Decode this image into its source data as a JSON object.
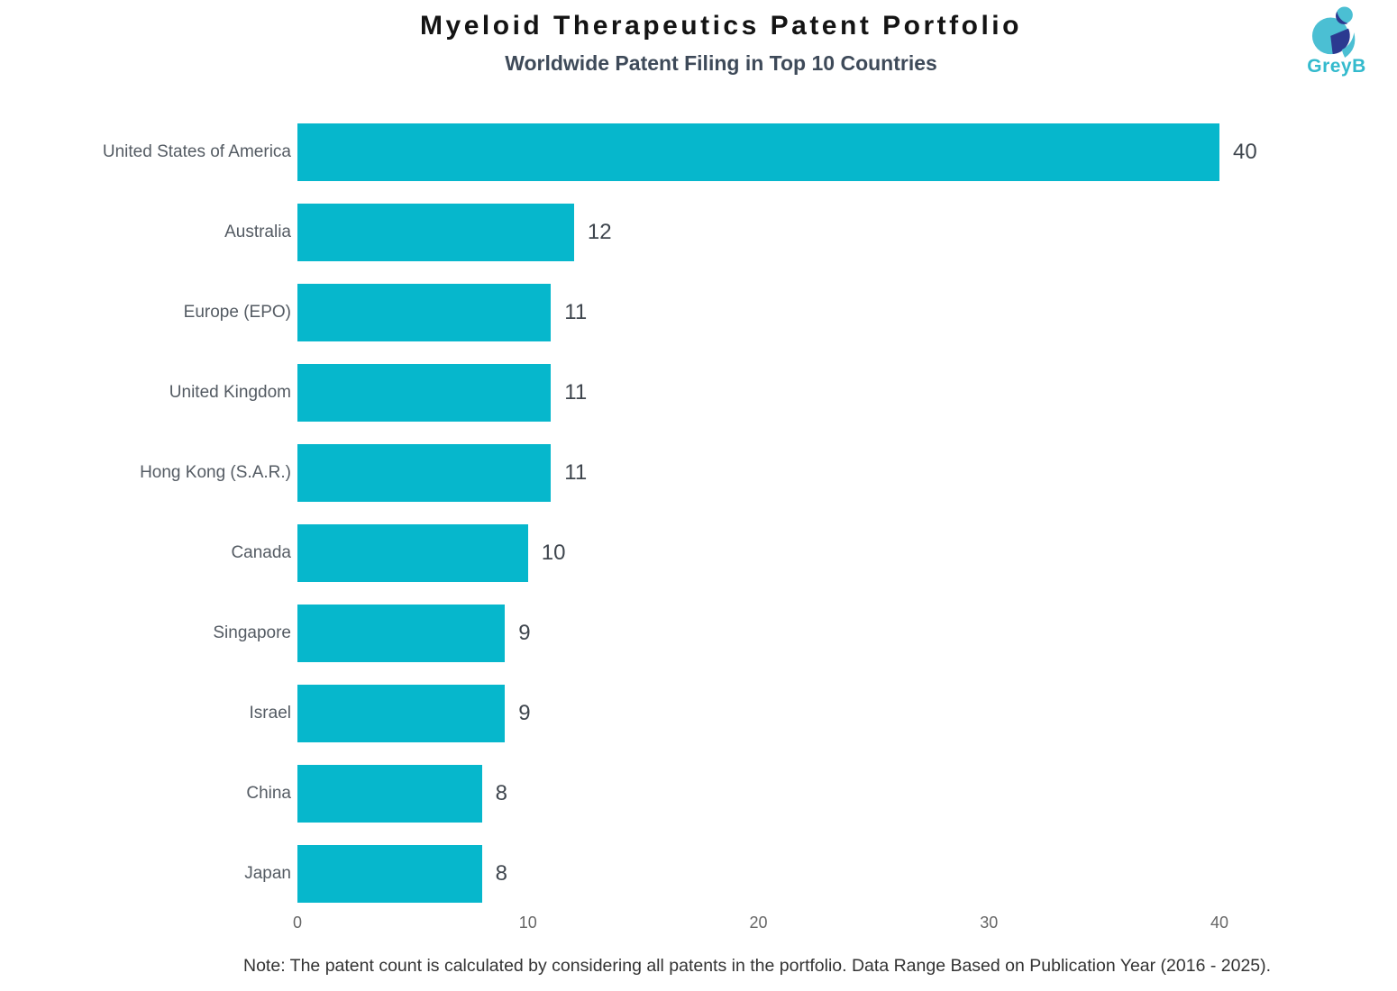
{
  "header": {
    "title": "Myeloid Therapeutics Patent Portfolio",
    "subtitle": "Worldwide Patent Filing in Top 10 Countries"
  },
  "logo": {
    "brand": "GreyB"
  },
  "colors": {
    "bar": "#06b7cc",
    "title": "#141414",
    "subtitle": "#3e4a59",
    "category_label": "#545b63",
    "value_label": "#3f464e",
    "tick_label": "#666666",
    "note": "#333333",
    "logo_teal": "#4bbfd3",
    "logo_navy": "#2b3990",
    "brand_text": "#33bacd"
  },
  "chart_data": {
    "type": "bar",
    "orientation": "horizontal",
    "title": "Myeloid Therapeutics Patent Portfolio",
    "subtitle": "Worldwide Patent Filing in Top 10 Countries",
    "categories": [
      "United States of America",
      "Australia",
      "Europe (EPO)",
      "United Kingdom",
      "Hong Kong (S.A.R.)",
      "Canada",
      "Singapore",
      "Israel",
      "China",
      "Japan"
    ],
    "values": [
      40,
      12,
      11,
      11,
      11,
      10,
      9,
      9,
      8,
      8
    ],
    "xlabel": "",
    "ylabel": "",
    "xlim": [
      0,
      40
    ],
    "x_ticks": [
      0,
      10,
      20,
      30,
      40
    ],
    "grid": false,
    "legend": false,
    "value_labels_shown": true,
    "bar_color": "#06b7cc"
  },
  "note": "Note: The patent count is calculated by considering all patents in the portfolio. Data Range Based on Publication Year (2016 - 2025)."
}
